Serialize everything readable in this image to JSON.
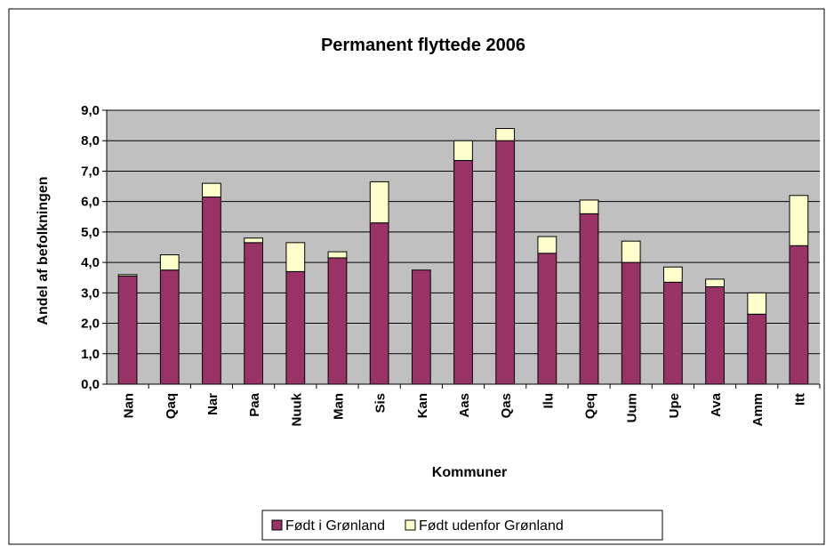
{
  "chart_data": {
    "type": "stacked_bar",
    "title": "Permanent flyttede 2006",
    "x_label": "Kommuner",
    "y_label": "Andel af befolkningen",
    "categories": [
      "Nan",
      "Qaq",
      "Nar",
      "Paa",
      "Nuuk",
      "Man",
      "Sis",
      "Kan",
      "Aas",
      "Qas",
      "Ilu",
      "Qeq",
      "Uum",
      "Upe",
      "Ava",
      "Amm",
      "Itt"
    ],
    "series": [
      {
        "name": "Født i Grønland",
        "color": "#993366",
        "values": [
          3.55,
          3.75,
          6.15,
          4.65,
          3.7,
          4.15,
          5.3,
          3.75,
          7.35,
          8.0,
          4.3,
          5.6,
          4.0,
          3.35,
          3.2,
          2.3,
          4.55
        ]
      },
      {
        "name": "Født udenfor Grønland",
        "color": "#FFFFCC",
        "values": [
          0.05,
          0.5,
          0.45,
          0.15,
          0.95,
          0.2,
          1.35,
          0,
          0.65,
          0.4,
          0.55,
          0.45,
          0.7,
          0.5,
          0.25,
          0.7,
          1.65
        ]
      }
    ],
    "ylim": [
      0,
      9
    ],
    "yticks": [
      {
        "value": 0,
        "label": "0,0"
      },
      {
        "value": 1,
        "label": "1,0"
      },
      {
        "value": 2,
        "label": "2,0"
      },
      {
        "value": 3,
        "label": "3,0"
      },
      {
        "value": 4,
        "label": "4,0"
      },
      {
        "value": 5,
        "label": "5,0"
      },
      {
        "value": 6,
        "label": "6,0"
      },
      {
        "value": 7,
        "label": "7,0"
      },
      {
        "value": 8,
        "label": "8,0"
      },
      {
        "value": 9,
        "label": "9,0"
      }
    ],
    "grid": true,
    "plot_background": "#C0C0C0",
    "legend": "bottom"
  }
}
